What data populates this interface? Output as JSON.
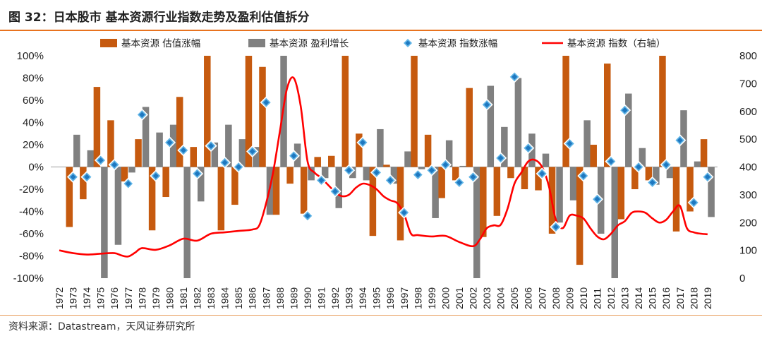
{
  "header": {
    "title": "图 32：日本股市 基本资源行业指数走势及盈利估值拆分"
  },
  "footer": {
    "source": "资料来源：Datastream，天风证券研究所"
  },
  "colors": {
    "valuation": "#c65a0f",
    "earnings": "#808080",
    "index_change": "#1f8fd0",
    "index_change_fill": "#ffffff",
    "index": "#ff0000",
    "accent": "#e8731f"
  },
  "chart_data": {
    "type": "bar",
    "title": "日本股市 基本资源行业指数走势及盈利估值拆分",
    "categories": [
      "1972",
      "1973",
      "1974",
      "1975",
      "1976",
      "1977",
      "1978",
      "1979",
      "1980",
      "1981",
      "1982",
      "1983",
      "1984",
      "1985",
      "1986",
      "1987",
      "1988",
      "1989",
      "1990",
      "1991",
      "1992",
      "1993",
      "1994",
      "1995",
      "1996",
      "1997",
      "1998",
      "1999",
      "2000",
      "2001",
      "2002",
      "2003",
      "2004",
      "2005",
      "2006",
      "2007",
      "2008",
      "2009",
      "2010",
      "2011",
      "2012",
      "2013",
      "2014",
      "2015",
      "2016",
      "2017",
      "2018",
      "2019"
    ],
    "y_left": {
      "ylim": [
        -100,
        100
      ],
      "ticks": [
        "100%",
        "80%",
        "60%",
        "40%",
        "20%",
        "0%",
        "-20%",
        "-40%",
        "-60%",
        "-80%",
        "-100%"
      ]
    },
    "y_right": {
      "ylim": [
        0,
        800
      ],
      "ticks": [
        "800",
        "700",
        "600",
        "500",
        "400",
        "300",
        "200",
        "100",
        "0"
      ]
    },
    "legend": [
      "基本资源 估值涨幅",
      "基本资源 盈利增长",
      "基本资源 指数涨幅",
      "基本资源 指数（右轴）"
    ],
    "legend_position": "top",
    "series": [
      {
        "name": "基本资源 估值涨幅",
        "kind": "bar",
        "values": [
          null,
          -54,
          -29,
          72,
          42,
          -13,
          25,
          -57,
          -27,
          63,
          18,
          100,
          -57,
          -34,
          100,
          90,
          -43,
          -15,
          -42,
          9,
          10,
          100,
          30,
          -62,
          2,
          -66,
          100,
          29,
          -28,
          -12,
          71,
          -63,
          -44,
          -10,
          -20,
          -21,
          -60,
          100,
          -88,
          20,
          93,
          -47,
          -20,
          -12,
          100,
          -58,
          -40,
          25
        ]
      },
      {
        "name": "基本资源 盈利增长",
        "kind": "bar",
        "values": [
          null,
          29,
          15,
          -100,
          -70,
          -5,
          54,
          31,
          38,
          -100,
          -31,
          22,
          38,
          25,
          18,
          -43,
          100,
          21,
          -12,
          -10,
          -37,
          -10,
          -12,
          34,
          -15,
          14,
          -2,
          -46,
          24,
          1,
          -100,
          73,
          36,
          80,
          30,
          12,
          -50,
          -30,
          42,
          -60,
          -100,
          66,
          17,
          -16,
          -10,
          51,
          5,
          -45
        ]
      },
      {
        "name": "基本资源 指数涨幅",
        "kind": "marker",
        "values": [
          null,
          -9,
          -9,
          6,
          2,
          -15,
          47,
          -8,
          22,
          15,
          -6,
          19,
          4,
          0,
          14,
          58,
          null,
          10,
          -44,
          -12,
          -22,
          -3,
          22,
          -5,
          -12,
          -41,
          -7,
          -3,
          2,
          -14,
          -9,
          56,
          8,
          81,
          17,
          -6,
          -54,
          21,
          -8,
          -29,
          5,
          51,
          0,
          -14,
          2,
          24,
          -32,
          -9
        ]
      },
      {
        "name": "基本资源 指数（右轴）",
        "kind": "line",
        "axis": "right",
        "x": [
          1972.0,
          1973.0,
          1974.0,
          1975.0,
          1976.0,
          1976.5,
          1977.0,
          1977.5,
          1978.0,
          1979.0,
          1980.0,
          1981.0,
          1982.0,
          1983.0,
          1984.0,
          1985.0,
          1986.0,
          1986.5,
          1987.0,
          1987.5,
          1988.0,
          1988.5,
          1989.0,
          1989.5,
          1990.0,
          1990.5,
          1991.0,
          1992.0,
          1992.5,
          1993.0,
          1993.5,
          1994.0,
          1994.5,
          1995.0,
          1995.5,
          1996.0,
          1996.5,
          1997.0,
          1997.5,
          1998.0,
          1999.0,
          2000.0,
          2001.0,
          2002.0,
          2002.5,
          2003.0,
          2003.5,
          2004.0,
          2004.5,
          2005.0,
          2005.5,
          2006.0,
          2006.5,
          2007.0,
          2007.5,
          2008.0,
          2008.5,
          2009.0,
          2009.5,
          2010.0,
          2010.5,
          2011.0,
          2011.5,
          2012.0,
          2012.5,
          2013.0,
          2013.5,
          2014.0,
          2014.5,
          2015.0,
          2015.5,
          2016.0,
          2016.5,
          2017.0,
          2017.5,
          2018.0,
          2018.5,
          2019.0
        ],
        "values": [
          100,
          90,
          85,
          88,
          90,
          82,
          78,
          92,
          108,
          102,
          118,
          142,
          135,
          160,
          165,
          170,
          175,
          190,
          270,
          380,
          530,
          680,
          720,
          620,
          420,
          380,
          360,
          310,
          295,
          300,
          325,
          340,
          335,
          320,
          295,
          280,
          270,
          230,
          160,
          155,
          150,
          152,
          130,
          115,
          140,
          180,
          190,
          192,
          250,
          340,
          380,
          420,
          425,
          400,
          330,
          210,
          180,
          225,
          225,
          215,
          180,
          150,
          140,
          160,
          190,
          205,
          235,
          240,
          235,
          215,
          200,
          210,
          240,
          260,
          180,
          165,
          160,
          158
        ]
      }
    ]
  }
}
